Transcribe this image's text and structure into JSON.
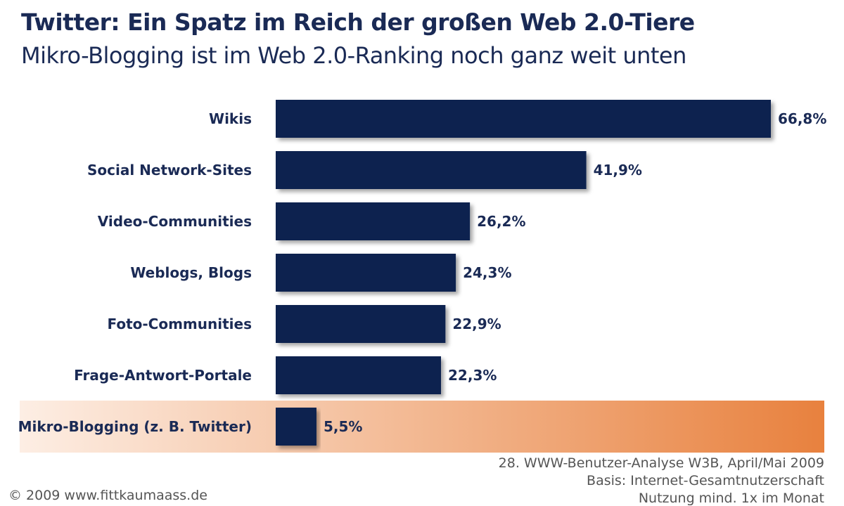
{
  "chart_data": {
    "type": "bar",
    "orientation": "horizontal",
    "title": "Twitter: Ein Spatz im Reich der großen Web 2.0-Tiere",
    "subtitle": "Mikro-Blogging ist im Web 2.0-Ranking noch ganz weit unten",
    "categories": [
      "Wikis",
      "Social Network-Sites",
      "Video-Communities",
      "Weblogs, Blogs",
      "Foto-Communities",
      "Frage-Antwort-Portale",
      "Mikro-Blogging (z. B. Twitter)"
    ],
    "values": [
      66.8,
      41.9,
      26.2,
      24.3,
      22.9,
      22.3,
      5.5
    ],
    "value_labels": [
      "66,8%",
      "41,9%",
      "26,2%",
      "24,3%",
      "22,9%",
      "22,3%",
      "5,5%"
    ],
    "highlight_index": 6,
    "xlim": [
      0,
      66.8
    ],
    "grid": false,
    "bar_color": "#0f2250",
    "highlight_gradient": [
      "#fdeee4",
      "#e8813e"
    ]
  },
  "footnote": {
    "source": "28. WWW-Benutzer-Analyse W3B, April/Mai 2009",
    "basis": "Basis: Internet-Gesamtnutzerschaft",
    "usage": "Nutzung mind. 1x im Monat"
  },
  "copyright": "© 2009 www.fittkaumaass.de",
  "colors": {
    "title": "#1a2a55",
    "label": "#1a2a55",
    "footnote": "#555555"
  }
}
